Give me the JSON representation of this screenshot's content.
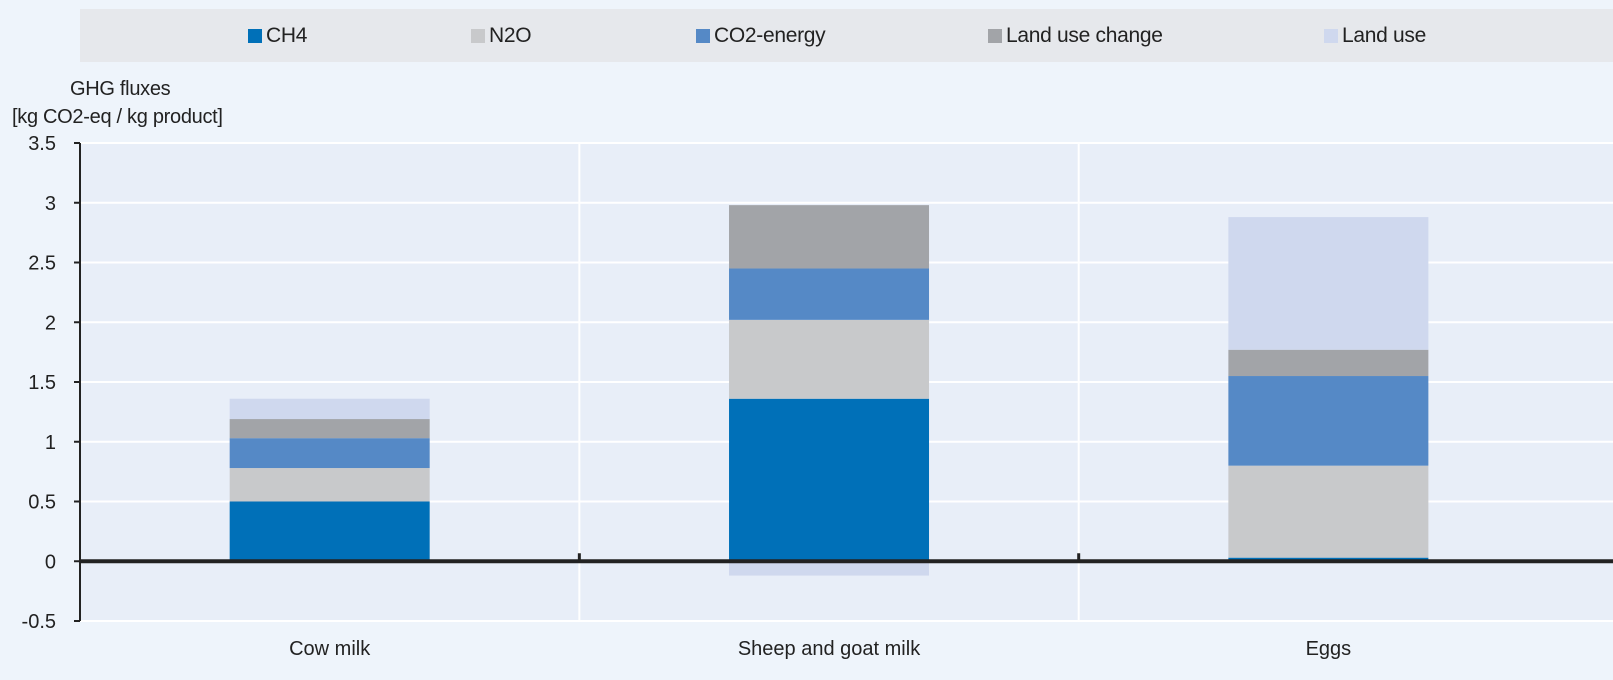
{
  "chart_data": {
    "type": "bar",
    "stacked": true,
    "categories": [
      "Cow milk",
      "Sheep and goat milk",
      "Eggs"
    ],
    "series": [
      {
        "name": "CH4",
        "color": "#0070b8",
        "values": [
          0.5,
          1.36,
          0.03
        ]
      },
      {
        "name": "N2O",
        "color": "#c8c9cb",
        "values": [
          0.28,
          0.66,
          0.77
        ]
      },
      {
        "name": "CO2-energy",
        "color": "#5589c6",
        "values": [
          0.25,
          0.43,
          0.75
        ]
      },
      {
        "name": "Land use change",
        "color": "#a2a4a8",
        "values": [
          0.16,
          0.53,
          0.22
        ]
      },
      {
        "name": "Land use",
        "color": "#cfd8ee",
        "values": [
          0.17,
          -0.12,
          1.11
        ]
      }
    ],
    "ylabel_line1": "GHG fluxes",
    "ylabel_line2": "[kg CO2-eq / kg product]",
    "ylim": [
      -0.5,
      3.5
    ],
    "yticks": [
      "3.5",
      "3",
      "2.5",
      "2",
      "1.5",
      "1",
      "0.5",
      "0",
      "-0.5"
    ],
    "grid": true,
    "legend_position": "top"
  }
}
